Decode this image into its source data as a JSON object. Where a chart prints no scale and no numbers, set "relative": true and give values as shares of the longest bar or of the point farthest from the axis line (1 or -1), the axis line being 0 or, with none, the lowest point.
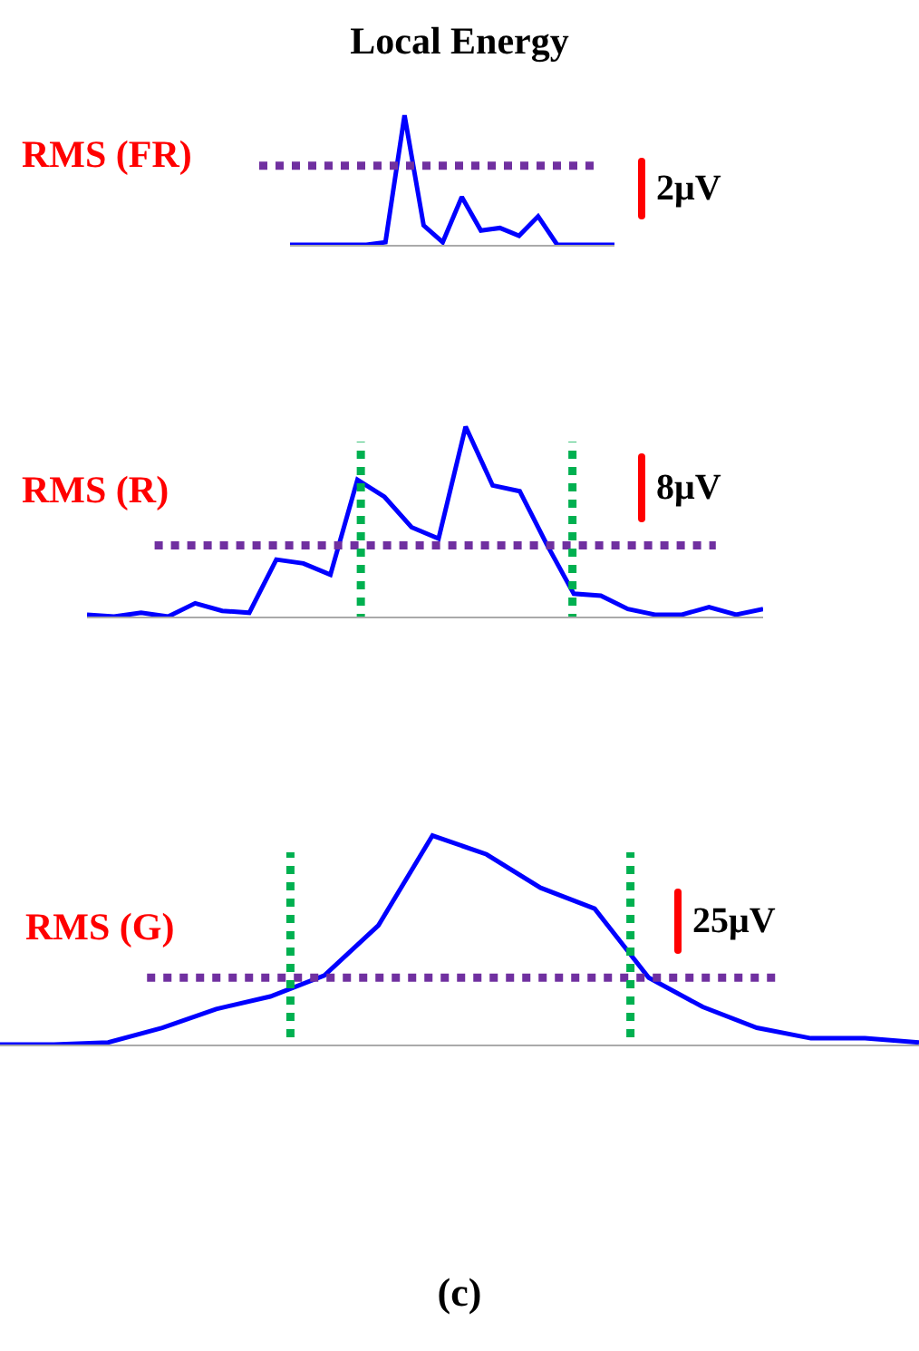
{
  "chart_data": [
    {
      "type": "line",
      "title": "Local Energy",
      "relative": true,
      "color": "#0000ff",
      "categories": [
        null,
        null,
        null,
        null,
        null,
        null,
        null,
        null,
        null,
        null,
        null,
        null,
        null,
        null,
        null,
        null,
        null,
        null
      ],
      "values": [
        0,
        0,
        0,
        0,
        0,
        0.02,
        1,
        0.15,
        0.02,
        0.37,
        0.11,
        0.13,
        0.07,
        0.22,
        0,
        0,
        0,
        0
      ],
      "ref_lines": [
        {
          "axis": "y",
          "value": 0.61,
          "label": "RMS (FR)",
          "color": "#7030a0",
          "line_style": "dotted"
        }
      ],
      "annotations": [
        "2μV"
      ]
    },
    {
      "type": "line",
      "relative": true,
      "color": "#0000ff",
      "categories": [
        null,
        null,
        null,
        null,
        null,
        null,
        null,
        null,
        null,
        null,
        null,
        null,
        null,
        null,
        null,
        null,
        null,
        null,
        null,
        null,
        null,
        null,
        null,
        null,
        null,
        null
      ],
      "values": [
        0.01,
        0,
        0.02,
        0,
        0.07,
        0.03,
        0.02,
        0.3,
        0.28,
        0.22,
        0.72,
        0.63,
        0.47,
        0.41,
        1,
        0.69,
        0.66,
        0.38,
        0.12,
        0.11,
        0.04,
        0.01,
        0.01,
        0.05,
        0.01,
        0.04
      ],
      "ref_lines": [
        {
          "axis": "y",
          "value": 0.375,
          "label": "RMS (R)",
          "color": "#7030a0",
          "line_style": "dotted"
        }
      ],
      "annotations": [
        "8μV"
      ]
    },
    {
      "type": "line",
      "relative": true,
      "color": "#0000ff",
      "categories": [
        null,
        null,
        null,
        null,
        null,
        null,
        null,
        null,
        null,
        null,
        null,
        null,
        null,
        null,
        null,
        null,
        null,
        null
      ],
      "values": [
        0,
        0,
        0.01,
        0.08,
        0.17,
        0.23,
        0.33,
        0.57,
        1,
        0.91,
        0.75,
        0.65,
        0.32,
        0.18,
        0.08,
        0.03,
        0.03,
        0.01
      ],
      "ref_lines": [
        {
          "axis": "y",
          "value": 0.32,
          "label": "RMS (G)",
          "color": "#7030a0",
          "line_style": "dotted"
        }
      ],
      "annotations": [
        "25μV",
        "(c)"
      ]
    }
  ]
}
